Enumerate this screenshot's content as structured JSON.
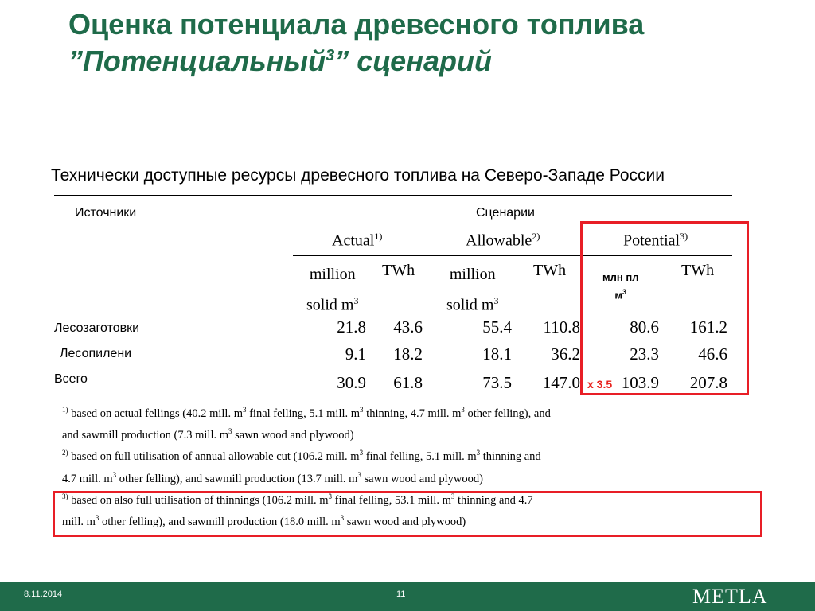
{
  "title": {
    "line1": "Оценка потенциала древесного топлива",
    "line2_prefix": "”Потенциальный",
    "line2_sup": "3",
    "line2_suffix": "” сценарий"
  },
  "table_caption": "Технически доступные ресурсы древесного топлива на Северо-Западе России",
  "table": {
    "header_sources": "Источники",
    "header_scenarios": "Сценарии",
    "scenarios": [
      {
        "name": "Actual",
        "note": "1)"
      },
      {
        "name": "Allowable",
        "note": "2)"
      },
      {
        "name": "Potential",
        "note": "3)"
      }
    ],
    "units": {
      "million_line1": "million",
      "million_line2": "solid m",
      "million_sup": "3",
      "twh": "TWh",
      "ru_line1": "млн пл",
      "ru_line2": "м",
      "ru_sup": "3"
    },
    "rows": [
      {
        "label": "Лесозаготовки",
        "values": [
          "21.8",
          "43.6",
          "55.4",
          "110.8",
          "80.6",
          "161.2"
        ]
      },
      {
        "label": "Лесопилени",
        "values": [
          "9.1",
          "18.2",
          "18.1",
          "36.2",
          "23.3",
          "46.6"
        ]
      },
      {
        "label": "Всего",
        "values": [
          "30.9",
          "61.8",
          "73.5",
          "147.0",
          "103.9",
          "207.8"
        ]
      }
    ],
    "multiplier": "x 3.5"
  },
  "footnotes": {
    "n1": "1)",
    "l1a": " based on actual fellings (40.2 mill. m",
    "l1b": " final felling, 5.1 mill. m",
    "l1c": " thinning, 4.7 mill. m",
    "l1d": " other felling), and",
    "l2a": "and sawmill production (7.3 mill. m",
    "l2b": " sawn wood and plywood)",
    "n2": "2)",
    "l3a": " based on full utilisation of annual allowable cut (106.2 mill. m",
    "l3b": " final felling, 5.1 mill. m",
    "l3c": " thinning and",
    "l4a": "4.7 mill. m",
    "l4b": " other felling), and sawmill production (13.7 mill. m",
    "l4c": " sawn wood and plywood)",
    "n3": "3)",
    "l5a": " based on also full utilisation of thinnings (106.2 mill. m",
    "l5b": " final felling, 53.1 mill. m",
    "l5c": " thinning and 4.7",
    "l6a": "mill. m",
    "l6b": " other felling), and sawmill production (18.0 mill. m",
    "l6c": " sawn wood and plywood)",
    "cube": "3"
  },
  "footer": {
    "date": "8.11.2014",
    "page": "11",
    "logo": "METLA"
  },
  "colors": {
    "title_green": "#1f6b4a",
    "highlight_red": "#e81e26"
  }
}
